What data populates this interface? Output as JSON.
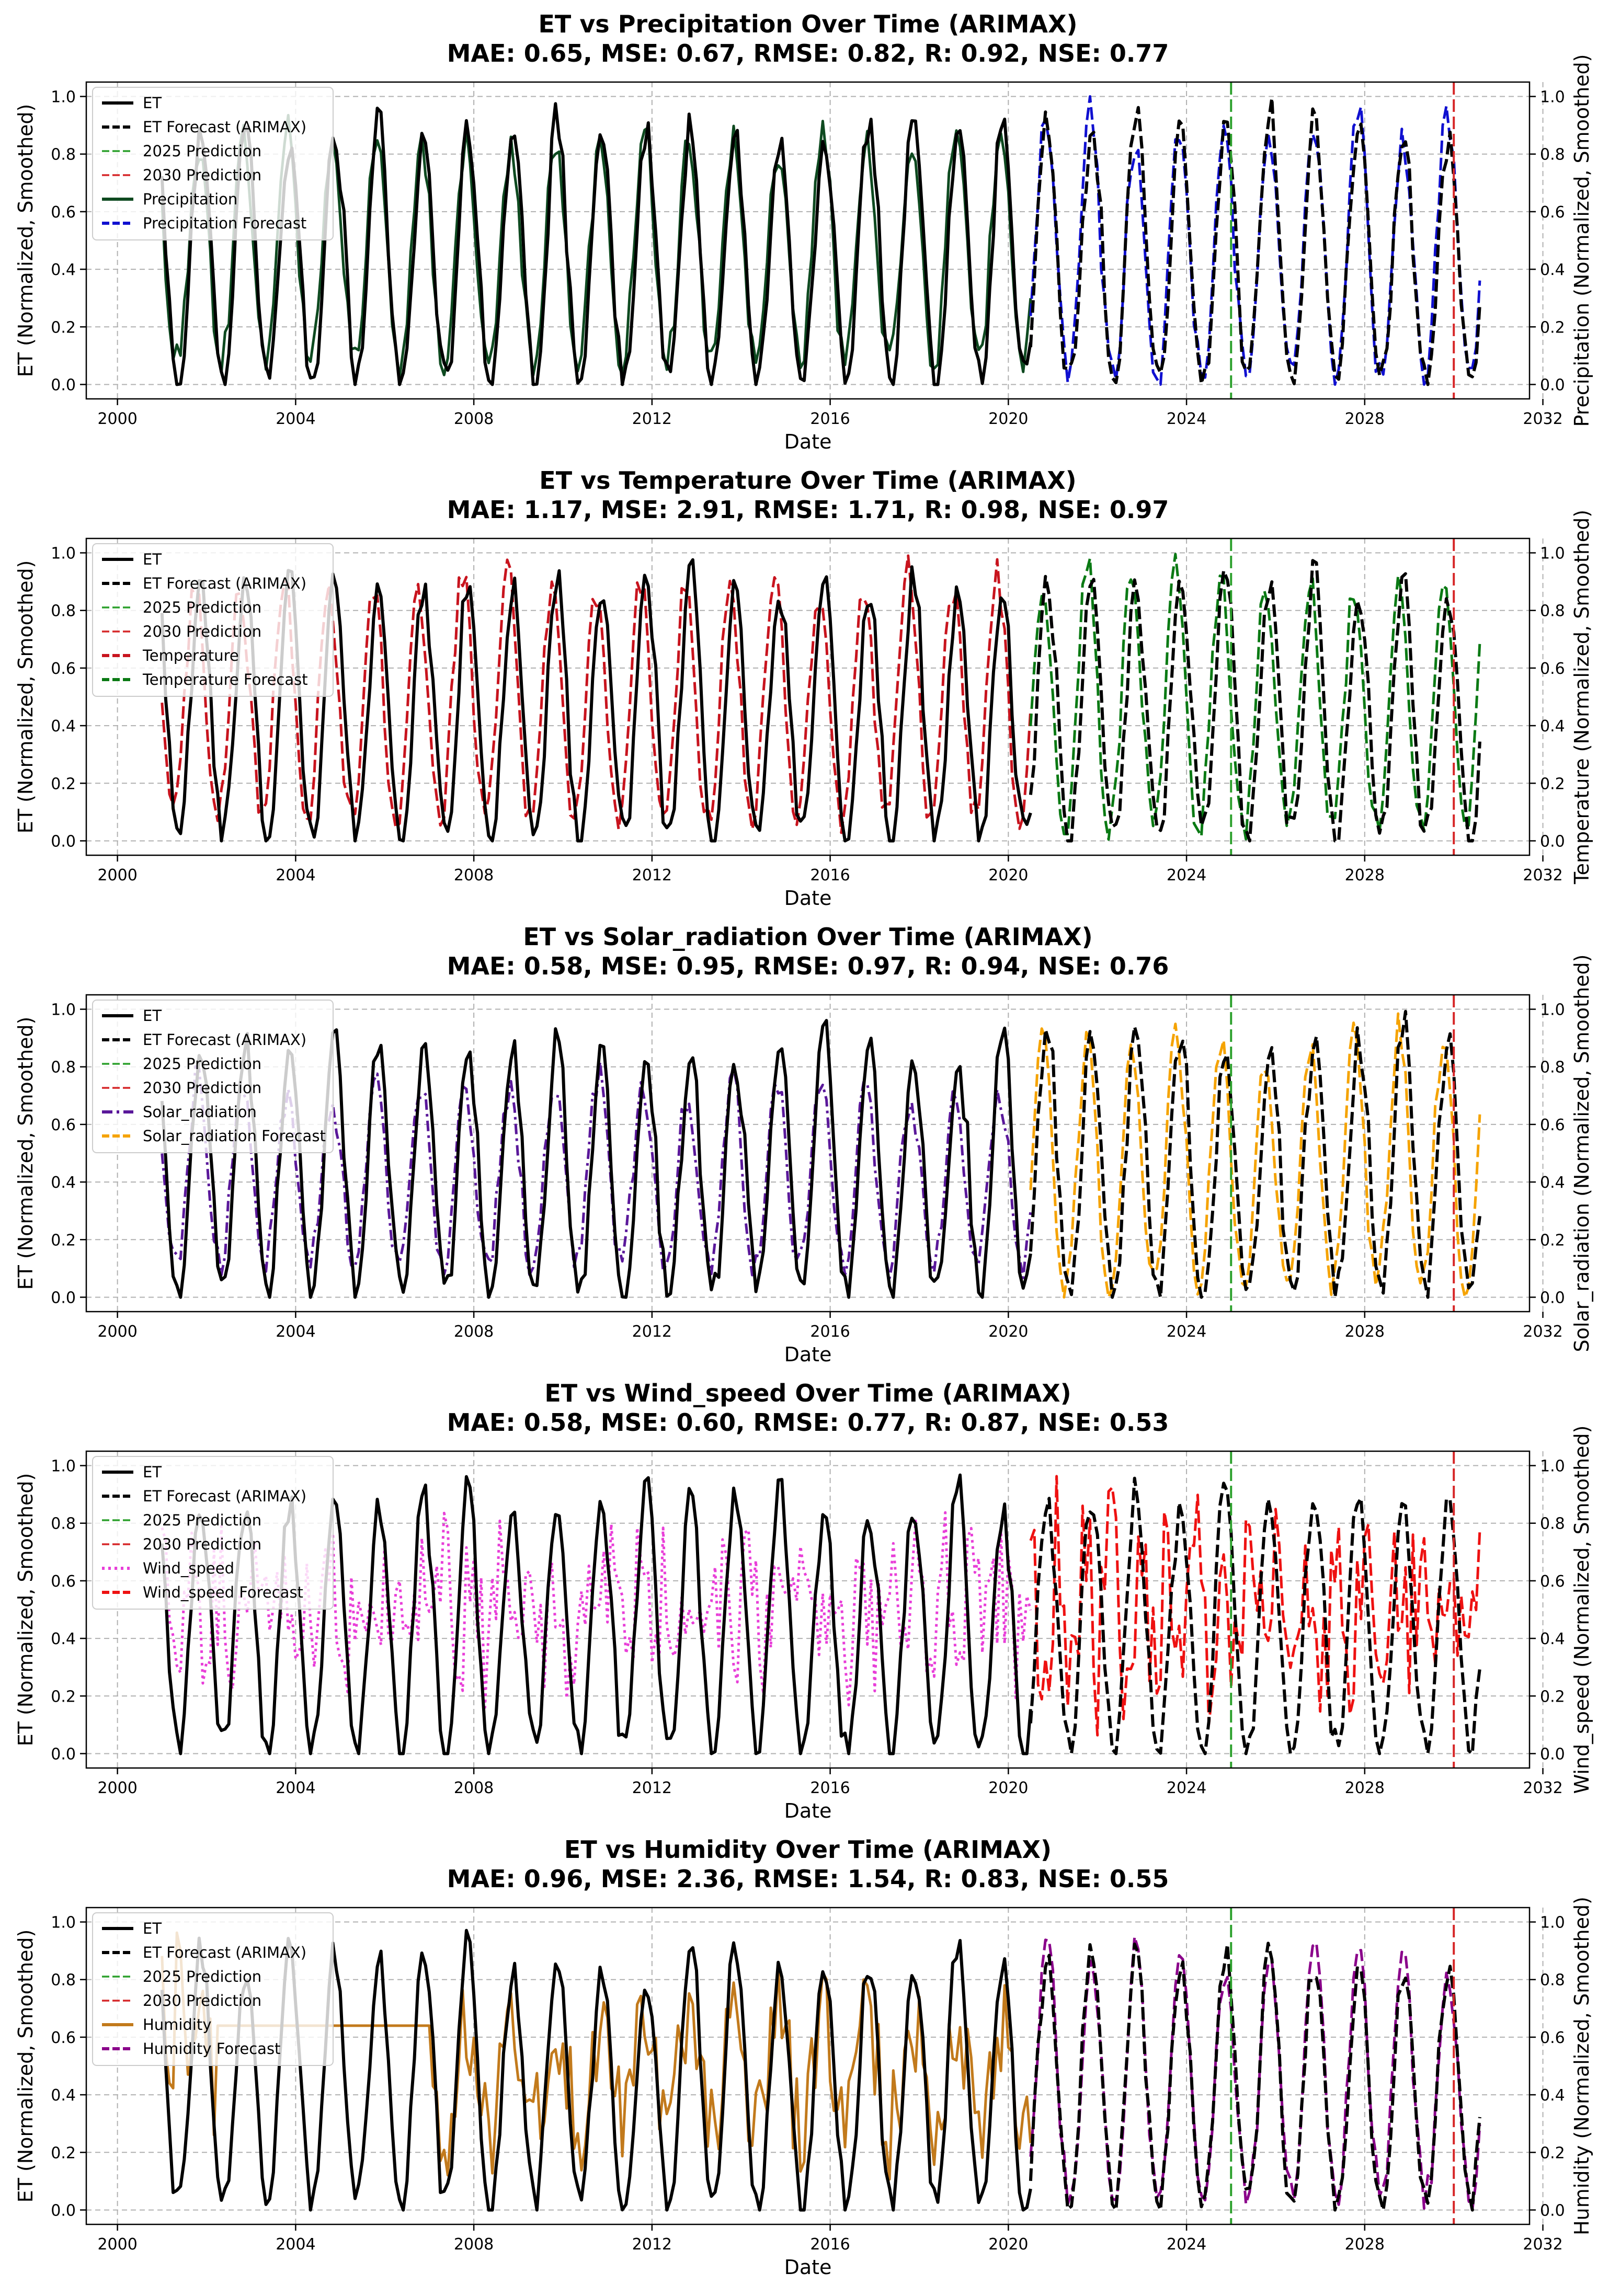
{
  "chart_data": [
    {
      "type": "line",
      "title": "ET vs Precipitation Over Time (ARIMAX)",
      "metrics": "MAE: 0.65, MSE: 0.67, RMSE: 0.82, R: 0.92, NSE: 0.77",
      "xlabel": "Date",
      "ylabel_left": "ET (Normalized, Smoothed)",
      "ylabel_right": "Precipitation (Normalized, Smoothed)",
      "xlim": [
        1999.3,
        2031.7
      ],
      "ylim": [
        -0.05,
        1.05
      ],
      "xticks": [
        "2000",
        "2004",
        "2008",
        "2012",
        "2016",
        "2020",
        "2024",
        "2028",
        "2032"
      ],
      "yticks": [
        "0.0",
        "0.2",
        "0.4",
        "0.6",
        "0.8",
        "1.0"
      ],
      "grid": true,
      "legend_position": "top-left",
      "vlines": [
        {
          "x": 2025.0,
          "label": "2025 Prediction",
          "color": "#2ca02c"
        },
        {
          "x": 2030.0,
          "label": "2030 Prediction",
          "color": "#d62728"
        }
      ],
      "series": [
        {
          "name": "ET",
          "color": "#000000",
          "style": "solid",
          "x_start": 2001.0,
          "x_end": 2020.5,
          "phase": 0.62,
          "kind": "seasonal",
          "low": 0.02,
          "high": 0.95
        },
        {
          "name": "ET Forecast (ARIMAX)",
          "color": "#000000",
          "style": "dashed",
          "x_start": 2020.5,
          "x_end": 2030.6,
          "phase": 0.62,
          "kind": "seasonal",
          "low": 0.02,
          "high": 0.97
        },
        {
          "name": "Precipitation",
          "color": "#0e4a20",
          "style": "solid",
          "x_start": 2001.0,
          "x_end": 2020.5,
          "phase": 0.58,
          "kind": "seasonal",
          "low": 0.08,
          "high": 0.9
        },
        {
          "name": "Precipitation Forecast",
          "color": "#1010d0",
          "style": "dashed",
          "x_start": 2020.5,
          "x_end": 2030.6,
          "phase": 0.6,
          "kind": "seasonal",
          "low": 0.03,
          "high": 0.97
        }
      ]
    },
    {
      "type": "line",
      "title": "ET vs Temperature Over Time (ARIMAX)",
      "metrics": "MAE: 1.17, MSE: 2.91, RMSE: 1.71, R: 0.98, NSE: 0.97",
      "xlabel": "Date",
      "ylabel_left": "ET (Normalized, Smoothed)",
      "ylabel_right": "Temperature (Normalized, Smoothed)",
      "xlim": [
        1999.3,
        2031.7
      ],
      "ylim": [
        -0.05,
        1.05
      ],
      "xticks": [
        "2000",
        "2004",
        "2008",
        "2012",
        "2016",
        "2020",
        "2024",
        "2028",
        "2032"
      ],
      "yticks": [
        "0.0",
        "0.2",
        "0.4",
        "0.6",
        "0.8",
        "1.0"
      ],
      "grid": true,
      "legend_position": "top-left",
      "vlines": [
        {
          "x": 2025.0,
          "label": "2025 Prediction",
          "color": "#2ca02c"
        },
        {
          "x": 2030.0,
          "label": "2030 Prediction",
          "color": "#d62728"
        }
      ],
      "series": [
        {
          "name": "ET",
          "color": "#000000",
          "style": "solid",
          "x_start": 2001.0,
          "x_end": 2020.5,
          "phase": 0.62,
          "kind": "seasonal",
          "low": 0.02,
          "high": 0.95
        },
        {
          "name": "ET Forecast (ARIMAX)",
          "color": "#000000",
          "style": "dashed",
          "x_start": 2020.5,
          "x_end": 2030.6,
          "phase": 0.62,
          "kind": "seasonal",
          "low": 0.02,
          "high": 0.97
        },
        {
          "name": "Temperature",
          "color": "#c8141e",
          "style": "dashed",
          "x_start": 2001.0,
          "x_end": 2020.5,
          "phase": 0.5,
          "kind": "seasonal",
          "low": 0.08,
          "high": 0.96
        },
        {
          "name": "Temperature Forecast",
          "color": "#0a7a14",
          "style": "dashed",
          "x_start": 2020.5,
          "x_end": 2030.6,
          "phase": 0.52,
          "kind": "seasonal",
          "low": 0.04,
          "high": 0.98
        }
      ]
    },
    {
      "type": "line",
      "title": "ET vs Solar_radiation Over Time (ARIMAX)",
      "metrics": "MAE: 0.58, MSE: 0.95, RMSE: 0.97, R: 0.94, NSE: 0.76",
      "xlabel": "Date",
      "ylabel_left": "ET (Normalized, Smoothed)",
      "ylabel_right": "Solar_radiation (Normalized, Smoothed)",
      "xlim": [
        1999.3,
        2031.7
      ],
      "ylim": [
        -0.05,
        1.05
      ],
      "xticks": [
        "2000",
        "2004",
        "2008",
        "2012",
        "2016",
        "2020",
        "2024",
        "2028",
        "2032"
      ],
      "yticks": [
        "0.0",
        "0.2",
        "0.4",
        "0.6",
        "0.8",
        "1.0"
      ],
      "grid": true,
      "legend_position": "top-left",
      "vlines": [
        {
          "x": 2025.0,
          "label": "2025 Prediction",
          "color": "#2ca02c"
        },
        {
          "x": 2030.0,
          "label": "2030 Prediction",
          "color": "#d62728"
        }
      ],
      "series": [
        {
          "name": "ET",
          "color": "#000000",
          "style": "solid",
          "x_start": 2001.0,
          "x_end": 2020.5,
          "phase": 0.62,
          "kind": "seasonal",
          "low": 0.02,
          "high": 0.95
        },
        {
          "name": "ET Forecast (ARIMAX)",
          "color": "#000000",
          "style": "dashed",
          "x_start": 2020.5,
          "x_end": 2030.6,
          "phase": 0.62,
          "kind": "seasonal",
          "low": 0.02,
          "high": 0.97
        },
        {
          "name": "Solar_radiation",
          "color": "#5a189a",
          "style": "dashdot",
          "x_start": 2001.0,
          "x_end": 2020.5,
          "phase": 0.55,
          "kind": "seasonal",
          "low": 0.12,
          "high": 0.78
        },
        {
          "name": "Solar_radiation Forecast",
          "color": "#f5a300",
          "style": "dashed",
          "x_start": 2020.5,
          "x_end": 2030.6,
          "phase": 0.52,
          "kind": "seasonal",
          "low": 0.04,
          "high": 0.97
        }
      ]
    },
    {
      "type": "line",
      "title": "ET vs Wind_speed Over Time (ARIMAX)",
      "metrics": "MAE: 0.58, MSE: 0.60, RMSE: 0.77, R: 0.87, NSE: 0.53",
      "xlabel": "Date",
      "ylabel_left": "ET (Normalized, Smoothed)",
      "ylabel_right": "Wind_speed (Normalized, Smoothed)",
      "xlim": [
        1999.3,
        2031.7
      ],
      "ylim": [
        -0.05,
        1.05
      ],
      "xticks": [
        "2000",
        "2004",
        "2008",
        "2012",
        "2016",
        "2020",
        "2024",
        "2028",
        "2032"
      ],
      "yticks": [
        "0.0",
        "0.2",
        "0.4",
        "0.6",
        "0.8",
        "1.0"
      ],
      "grid": true,
      "legend_position": "top-left",
      "vlines": [
        {
          "x": 2025.0,
          "label": "2025 Prediction",
          "color": "#2ca02c"
        },
        {
          "x": 2030.0,
          "label": "2030 Prediction",
          "color": "#d62728"
        }
      ],
      "series": [
        {
          "name": "ET",
          "color": "#000000",
          "style": "solid",
          "x_start": 2001.0,
          "x_end": 2020.5,
          "phase": 0.62,
          "kind": "seasonal",
          "low": 0.02,
          "high": 0.95
        },
        {
          "name": "ET Forecast (ARIMAX)",
          "color": "#000000",
          "style": "dashed",
          "x_start": 2020.5,
          "x_end": 2030.6,
          "phase": 0.62,
          "kind": "seasonal",
          "low": 0.02,
          "high": 0.97
        },
        {
          "name": "Wind_speed",
          "color": "#e83ed8",
          "style": "dotted",
          "x_start": 2001.0,
          "x_end": 2020.5,
          "phase": 0.3,
          "kind": "noisy",
          "low": 0.15,
          "high": 0.85
        },
        {
          "name": "Wind_speed Forecast",
          "color": "#ee1111",
          "style": "dashed",
          "x_start": 2020.5,
          "x_end": 2030.6,
          "phase": 0.3,
          "kind": "noisy",
          "low": 0.05,
          "high": 0.97
        }
      ]
    },
    {
      "type": "line",
      "title": "ET vs Humidity Over Time (ARIMAX)",
      "metrics": "MAE: 0.96, MSE: 2.36, RMSE: 1.54, R: 0.83, NSE: 0.55",
      "xlabel": "Date",
      "ylabel_left": "ET (Normalized, Smoothed)",
      "ylabel_right": "Humidity (Normalized, Smoothed)",
      "xlim": [
        1999.3,
        2031.7
      ],
      "ylim": [
        -0.05,
        1.05
      ],
      "xticks": [
        "2000",
        "2004",
        "2008",
        "2012",
        "2016",
        "2020",
        "2024",
        "2028",
        "2032"
      ],
      "yticks": [
        "0.0",
        "0.2",
        "0.4",
        "0.6",
        "0.8",
        "1.0"
      ],
      "grid": true,
      "legend_position": "top-left",
      "vlines": [
        {
          "x": 2025.0,
          "label": "2025 Prediction",
          "color": "#2ca02c"
        },
        {
          "x": 2030.0,
          "label": "2030 Prediction",
          "color": "#d62728"
        }
      ],
      "series": [
        {
          "name": "ET",
          "color": "#000000",
          "style": "solid",
          "x_start": 2001.0,
          "x_end": 2020.5,
          "phase": 0.62,
          "kind": "seasonal",
          "low": 0.02,
          "high": 0.95
        },
        {
          "name": "ET Forecast (ARIMAX)",
          "color": "#000000",
          "style": "dashed",
          "x_start": 2020.5,
          "x_end": 2030.6,
          "phase": 0.62,
          "kind": "seasonal",
          "low": 0.02,
          "high": 0.97
        },
        {
          "name": "Humidity",
          "color": "#c27a1c",
          "style": "solid",
          "x_start": 2001.0,
          "x_end": 2020.5,
          "phase": 0.6,
          "kind": "humidity",
          "low": 0.1,
          "high": 0.85,
          "flat_from": 2002.2,
          "flat_to": 2007.0,
          "flat_value": 0.64
        },
        {
          "name": "Humidity Forecast",
          "color": "#8a008a",
          "style": "dashed",
          "x_start": 2020.5,
          "x_end": 2030.6,
          "phase": 0.62,
          "kind": "seasonal",
          "low": 0.05,
          "high": 0.95
        }
      ]
    }
  ]
}
